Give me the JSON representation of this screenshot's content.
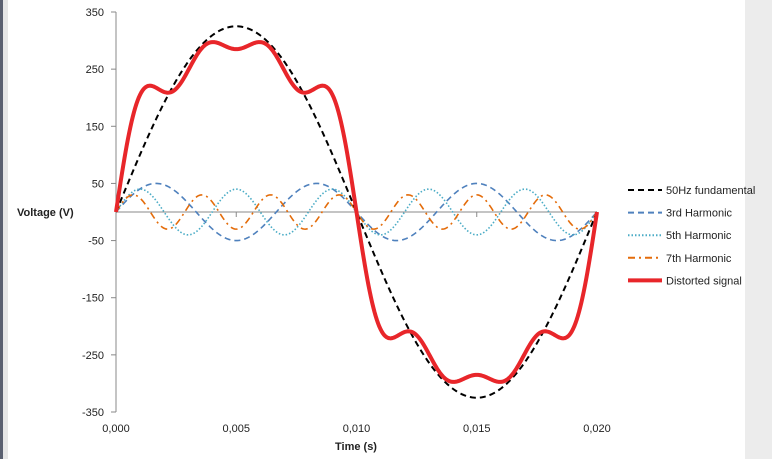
{
  "chart_data": {
    "type": "line",
    "title": "",
    "xlabel": "Time (s)",
    "ylabel": "Voltage (V)",
    "xlim": [
      0,
      0.02
    ],
    "ylim": [
      -350,
      350
    ],
    "x_ticks": [
      "0,000",
      "0,005",
      "0,010",
      "0,015",
      "0,020"
    ],
    "y_ticks": [
      "350",
      "250",
      "150",
      "50",
      "-50",
      "-150",
      "-250",
      "-350"
    ],
    "y_tick_values": [
      350,
      250,
      150,
      50,
      -50,
      -150,
      -250,
      -350
    ],
    "x_tick_values": [
      0,
      0.005,
      0.01,
      0.015,
      0.02
    ],
    "grid": false,
    "legend_position": "right",
    "series": [
      {
        "name": "50Hz fundamental",
        "form": "sine",
        "amplitude_v": 325,
        "frequency_hz": 50,
        "color": "#000000",
        "style": "dashed"
      },
      {
        "name": "3rd Harmonic",
        "form": "sine",
        "amplitude_v": 50,
        "frequency_hz": 150,
        "color": "#4f81bd",
        "style": "dashed"
      },
      {
        "name": "5th Harmonic",
        "form": "sine",
        "amplitude_v": 40,
        "frequency_hz": 250,
        "color": "#4bacc6",
        "style": "dotted"
      },
      {
        "name": "7th Harmonic",
        "form": "sine",
        "amplitude_v": 30,
        "frequency_hz": 350,
        "color": "#e46c0a",
        "style": "dash-dot"
      },
      {
        "name": "Distorted signal",
        "form": "sum of the above",
        "color": "#e8262a",
        "style": "solid"
      }
    ]
  }
}
